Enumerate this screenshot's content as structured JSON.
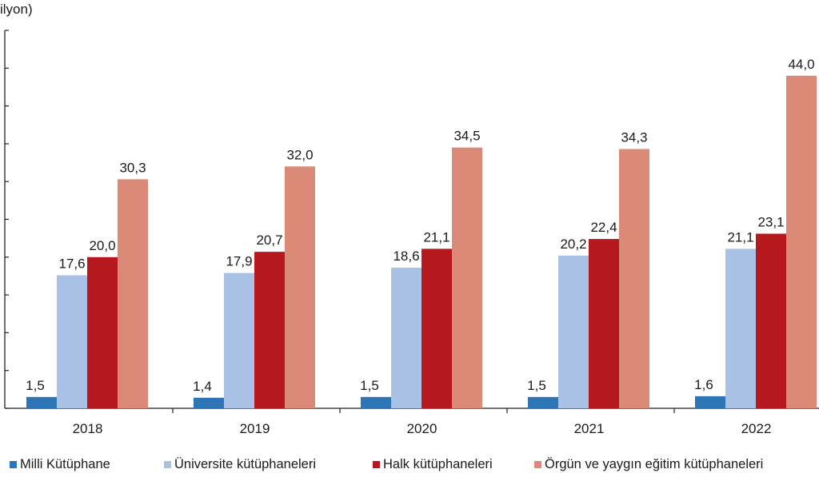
{
  "chart_data": {
    "type": "bar",
    "ylabel": "ilyon)",
    "ylim": [
      0,
      50
    ],
    "ytick_step": 5,
    "ytick_labels_visible": false,
    "grid": false,
    "legend_position": "bottom",
    "categories": [
      "2018",
      "2019",
      "2020",
      "2021",
      "2022"
    ],
    "series": [
      {
        "name": "Milli Kütüphane",
        "color": "#2e75b6",
        "values": [
          1.5,
          1.4,
          1.5,
          1.5,
          1.6
        ],
        "labels": [
          "1,5",
          "1,4",
          "1,5",
          "1,5",
          "1,6"
        ]
      },
      {
        "name": "Üniversite kütüphaneleri",
        "color": "#a9c1e4",
        "values": [
          17.6,
          17.9,
          18.6,
          20.2,
          21.1
        ],
        "labels": [
          "17,6",
          "17,9",
          "18,6",
          "20,2",
          "21,1"
        ]
      },
      {
        "name": "Halk kütüphaneleri",
        "color": "#b5191d",
        "values": [
          20.0,
          20.7,
          21.1,
          22.4,
          23.1
        ],
        "labels": [
          "20,0",
          "20,7",
          "21,1",
          "22,4",
          "23,1"
        ]
      },
      {
        "name": "Örgün ve yaygın eğitim kütüphaneleri",
        "color": "#da8a77",
        "values": [
          30.3,
          32.0,
          34.5,
          34.3,
          44.0
        ],
        "labels": [
          "30,3",
          "32,0",
          "34,5",
          "34,3",
          "44,0"
        ]
      }
    ]
  }
}
